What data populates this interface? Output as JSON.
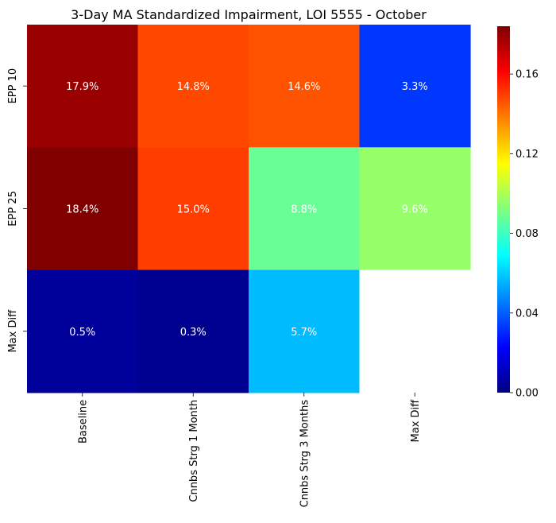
{
  "chart_data": {
    "type": "heatmap",
    "title": "3-Day MA Standardized Impairment, LOI 5555 - October",
    "row_labels": [
      "EPP 10",
      "EPP 25",
      "Max Diff"
    ],
    "col_labels": [
      "Baseline",
      "Cnnbs Strg 1 Month",
      "Cnnbs Strg 3 Months",
      "Max Diff"
    ],
    "values": [
      [
        0.179,
        0.148,
        0.146,
        0.033
      ],
      [
        0.184,
        0.15,
        0.088,
        0.096
      ],
      [
        0.005,
        0.003,
        0.057,
        null
      ]
    ],
    "cell_labels": [
      [
        "17.9%",
        "14.8%",
        "14.6%",
        "3.3%"
      ],
      [
        "18.4%",
        "15.0%",
        "8.8%",
        "9.6%"
      ],
      [
        "0.5%",
        "0.3%",
        "5.7%",
        ""
      ]
    ],
    "colormap": "jet",
    "vmin": 0.0,
    "vmax": 0.184,
    "colorbar_ticks": [
      "0.00",
      "0.04",
      "0.08",
      "0.12",
      "0.16"
    ],
    "colorbar_tick_values": [
      0.0,
      0.04,
      0.08,
      0.12,
      0.16
    ],
    "annotation_color": "#ffffff",
    "missing_cell_color": "#ffffff"
  }
}
